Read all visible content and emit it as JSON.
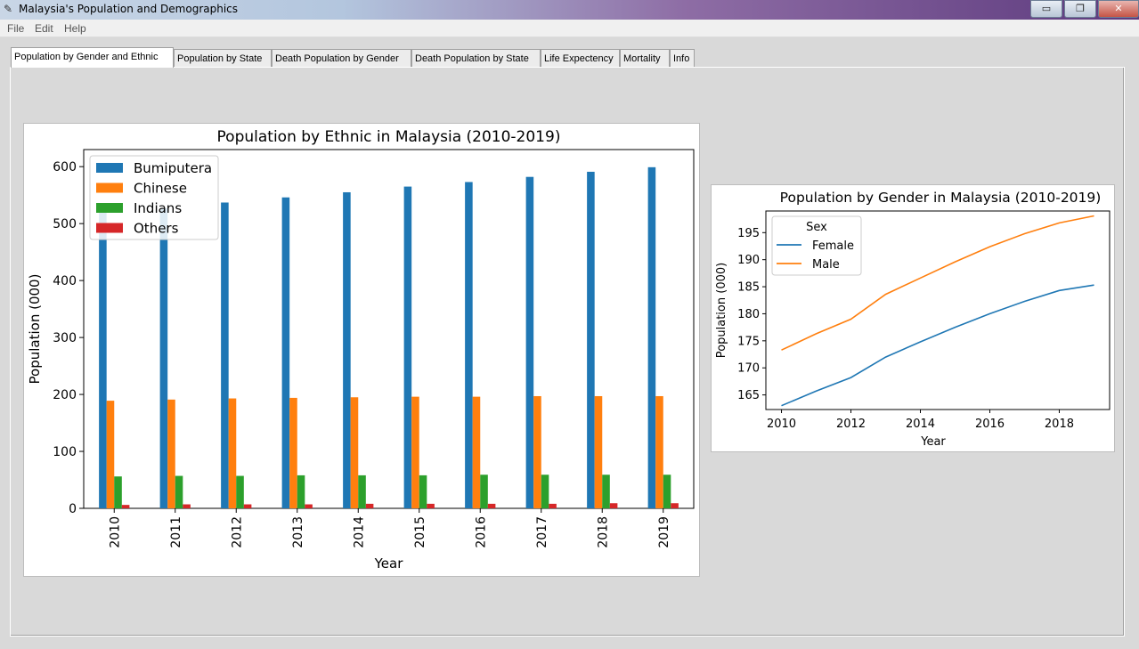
{
  "window": {
    "title": "Malaysia's Population and Demographics",
    "buttons": {
      "minimize": "▭",
      "maximize": "❐",
      "close": "✕"
    }
  },
  "menubar": {
    "items": [
      "File",
      "Edit",
      "Help"
    ]
  },
  "tabs": [
    "Population by Gender and Ethnic",
    "Population by State",
    "Death Population by Gender",
    "Death Population by State",
    "Life Expectency",
    "Mortality",
    "Info"
  ],
  "colors": {
    "blue": "#1f77b4",
    "orange": "#ff7f0e",
    "green": "#2ca02c",
    "red": "#d62728"
  },
  "chart_data": [
    {
      "type": "bar",
      "title": "Population by Ethnic in Malaysia (2010-2019)",
      "xlabel": "Year",
      "ylabel": "Population (000)",
      "categories": [
        "2010",
        "2011",
        "2012",
        "2013",
        "2014",
        "2015",
        "2016",
        "2017",
        "2018",
        "2019"
      ],
      "ylim": [
        0,
        630
      ],
      "yticks": [
        0,
        100,
        200,
        300,
        400,
        500,
        600
      ],
      "legend_position": "top-left",
      "series": [
        {
          "name": "Bumiputera",
          "color": "#1f77b4",
          "values": [
            520,
            527,
            537,
            546,
            555,
            565,
            573,
            582,
            591,
            599
          ]
        },
        {
          "name": "Chinese",
          "color": "#ff7f0e",
          "values": [
            189,
            191,
            193,
            194,
            195,
            196,
            196,
            197,
            197,
            197
          ]
        },
        {
          "name": "Indians",
          "color": "#2ca02c",
          "values": [
            56,
            57,
            57,
            58,
            58,
            58,
            59,
            59,
            59,
            59
          ]
        },
        {
          "name": "Others",
          "color": "#d62728",
          "values": [
            6,
            7,
            7,
            7,
            8,
            8,
            8,
            8,
            9,
            9
          ]
        }
      ]
    },
    {
      "type": "line",
      "title": "Population by Gender in Malaysia (2010-2019)",
      "xlabel": "Year",
      "ylabel": "Population (000)",
      "legend_title": "Sex",
      "legend_position": "top-left",
      "x": [
        2010,
        2011,
        2012,
        2013,
        2014,
        2015,
        2016,
        2017,
        2018,
        2019
      ],
      "xlim": [
        2009.55,
        2019.45
      ],
      "xticks": [
        2010,
        2012,
        2014,
        2016,
        2018
      ],
      "ylim": [
        162.3,
        199.0
      ],
      "yticks": [
        165,
        170,
        175,
        180,
        185,
        190,
        195
      ],
      "series": [
        {
          "name": "Female",
          "color": "#1f77b4",
          "values": [
            163.0,
            165.7,
            168.2,
            172.0,
            174.8,
            177.5,
            180.0,
            182.3,
            184.3,
            185.3
          ]
        },
        {
          "name": "Male",
          "color": "#ff7f0e",
          "values": [
            173.3,
            176.3,
            179.0,
            183.6,
            186.6,
            189.6,
            192.4,
            194.8,
            196.8,
            198.1
          ]
        }
      ]
    }
  ]
}
